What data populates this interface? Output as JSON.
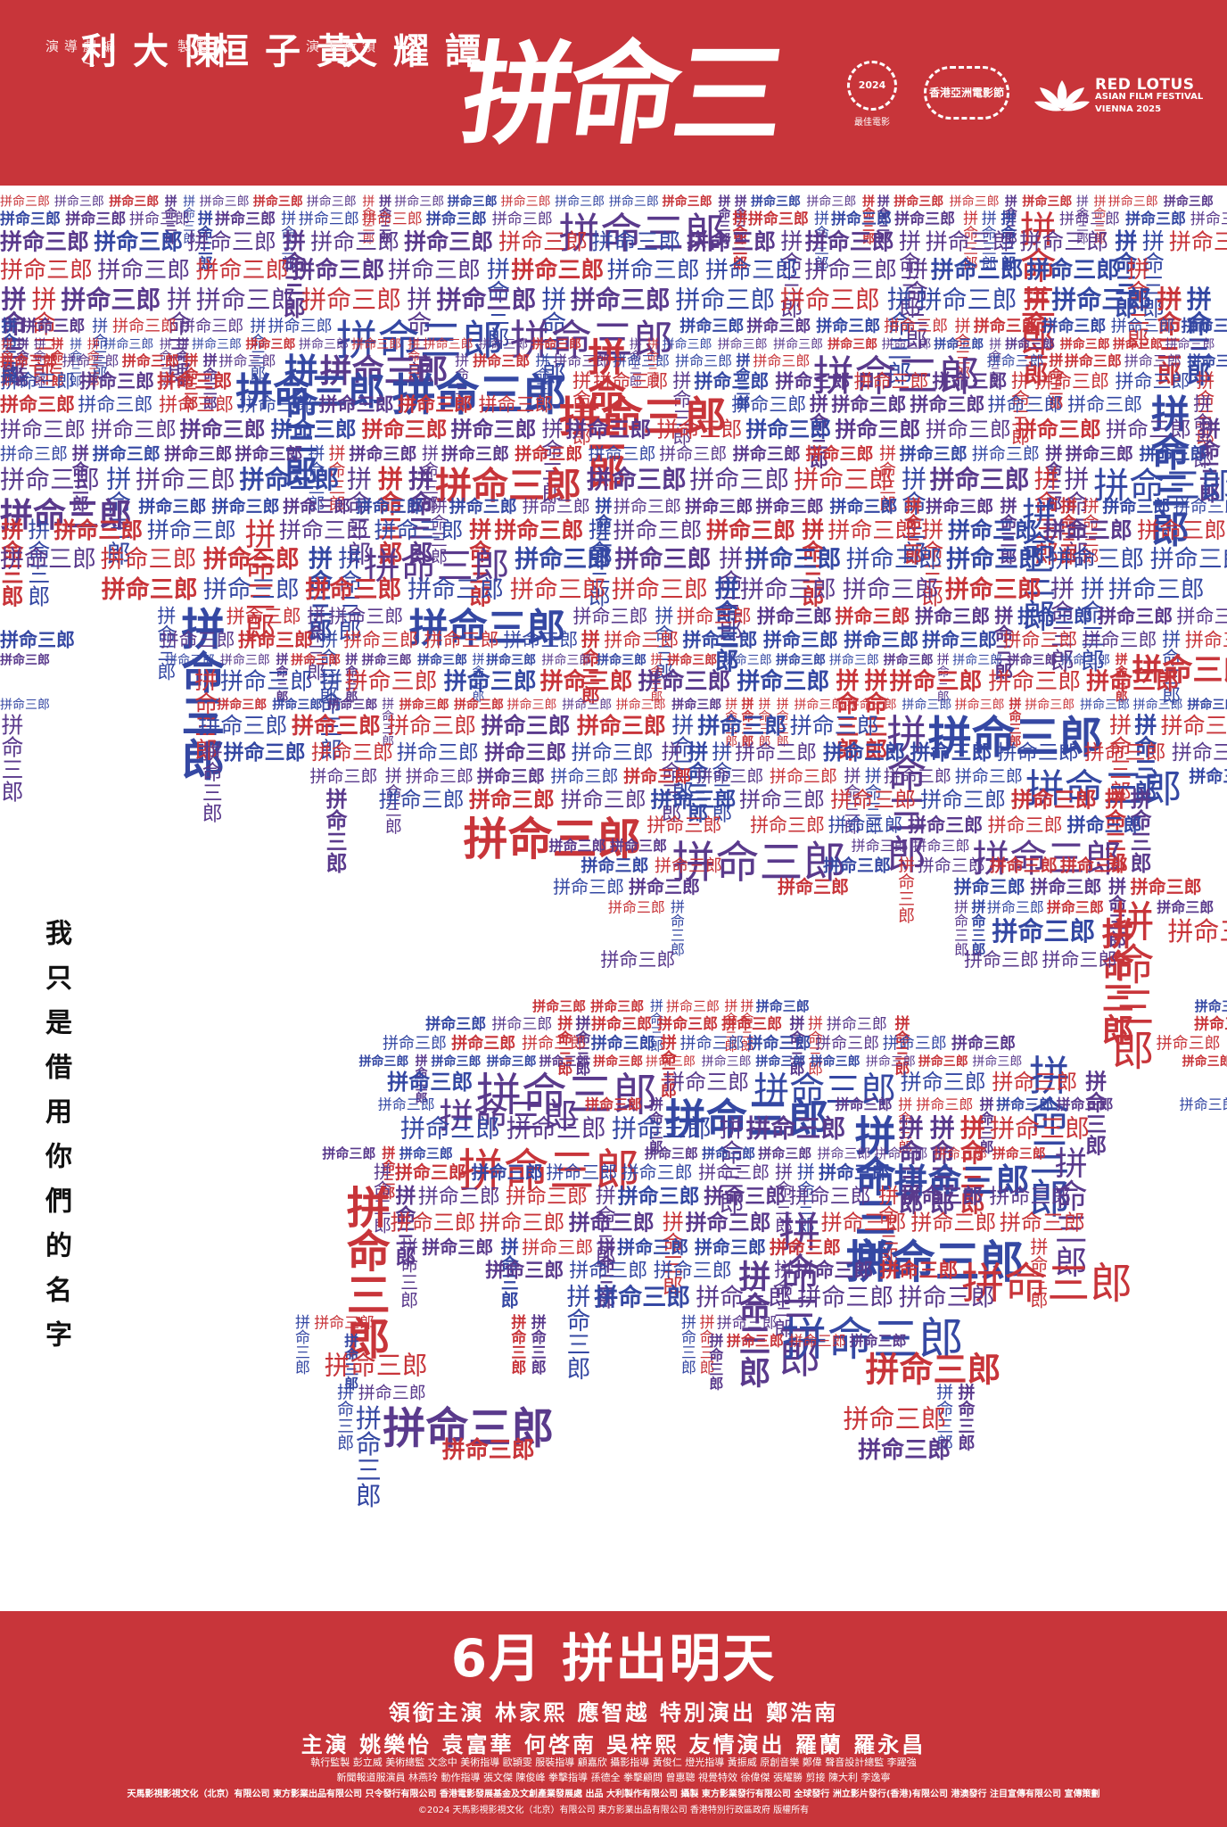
{
  "header": {
    "title": "拼命三郎",
    "credits": [
      {
        "role": "編劇/導演",
        "name": "陳大利"
      },
      {
        "role": "監製",
        "name": "黃子桓"
      },
      {
        "role": "領銜主演",
        "name": "譚耀文"
      }
    ],
    "awards": [
      {
        "ring_text": "2024",
        "caption": "最佳電影"
      },
      {
        "ring_text": "香港亞洲電影節",
        "caption": ""
      }
    ],
    "festival": {
      "line1": "RED LOTUS",
      "line2": "ASIAN FILM FESTIVAL",
      "line3": "VIENNA 2025"
    }
  },
  "artwork": {
    "repeated_phrase": "拼命三郎",
    "colors": [
      "#c8353a",
      "#3548a3",
      "#5a3a8c"
    ]
  },
  "side_slogan": "我只是借用你們的名字",
  "footer": {
    "release": "6月 拼出明天",
    "lead_cast": "領銜主演  林家熙  應智越  特別演出  鄭浩南",
    "main_cast": "主演  姚樂怡  袁富華  何啓南  吳梓熙  友情演出  羅蘭  羅永昌",
    "crew_1": "執行監製 彭立威    美術總監 文念中    美術指導 歐頴雯    服裝指導 顧嘉欣    攝影指導 黃俊仁    燈光指導 黃振威    原創音樂 鄭偉    聲音設計總監 李躍強",
    "crew_2": "新聞報道服演員 林燕玲    動作指導 張文傑 陳俊峰    拳擊指導 孫德全    拳擊顧問 曾惠聰    視覺特效 徐偉傑 張耀勝    剪接 陳大利 李逸寧",
    "companies": "天馬影視影視文化（北京）有限公司  東方影業出品有限公司  只令發行有限公司  香港電影發展基金及文創產業發展處  出品    大利製作有限公司  攝製    東方影業發行有限公司  全球發行    洲立影片發行(香港)有限公司  港澳發行    注目宣傳有限公司  宣傳策劃",
    "copyright": "©2024 天馬影視影視文化（北京）有限公司  東方影業出品有限公司  香港特別行政區政府  版權所有"
  }
}
